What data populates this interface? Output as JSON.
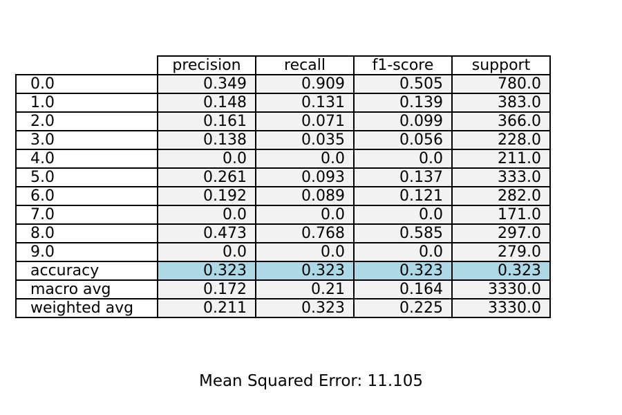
{
  "chart_data": {
    "type": "table",
    "columns": [
      "precision",
      "recall",
      "f1-score",
      "support"
    ],
    "rows": [
      {
        "label": "0.0",
        "values": [
          "0.349",
          "0.909",
          "0.505",
          "780.0"
        ]
      },
      {
        "label": "1.0",
        "values": [
          "0.148",
          "0.131",
          "0.139",
          "383.0"
        ]
      },
      {
        "label": "2.0",
        "values": [
          "0.161",
          "0.071",
          "0.099",
          "366.0"
        ]
      },
      {
        "label": "3.0",
        "values": [
          "0.138",
          "0.035",
          "0.056",
          "228.0"
        ]
      },
      {
        "label": "4.0",
        "values": [
          "0.0",
          "0.0",
          "0.0",
          "211.0"
        ]
      },
      {
        "label": "5.0",
        "values": [
          "0.261",
          "0.093",
          "0.137",
          "333.0"
        ]
      },
      {
        "label": "6.0",
        "values": [
          "0.192",
          "0.089",
          "0.121",
          "282.0"
        ]
      },
      {
        "label": "7.0",
        "values": [
          "0.0",
          "0.0",
          "0.0",
          "171.0"
        ]
      },
      {
        "label": "8.0",
        "values": [
          "0.473",
          "0.768",
          "0.585",
          "297.0"
        ]
      },
      {
        "label": "9.0",
        "values": [
          "0.0",
          "0.0",
          "0.0",
          "279.0"
        ]
      },
      {
        "label": "accuracy",
        "values": [
          "0.323",
          "0.323",
          "0.323",
          "0.323"
        ],
        "highlight": true
      },
      {
        "label": "macro avg",
        "values": [
          "0.172",
          "0.21",
          "0.164",
          "3330.0"
        ]
      },
      {
        "label": "weighted avg",
        "values": [
          "0.211",
          "0.323",
          "0.225",
          "3330.0"
        ]
      }
    ],
    "cell_color": "#f2f2f2",
    "highlight_color": "#add8e6"
  },
  "footer": {
    "text": "Mean Squared Error: 11.105"
  }
}
